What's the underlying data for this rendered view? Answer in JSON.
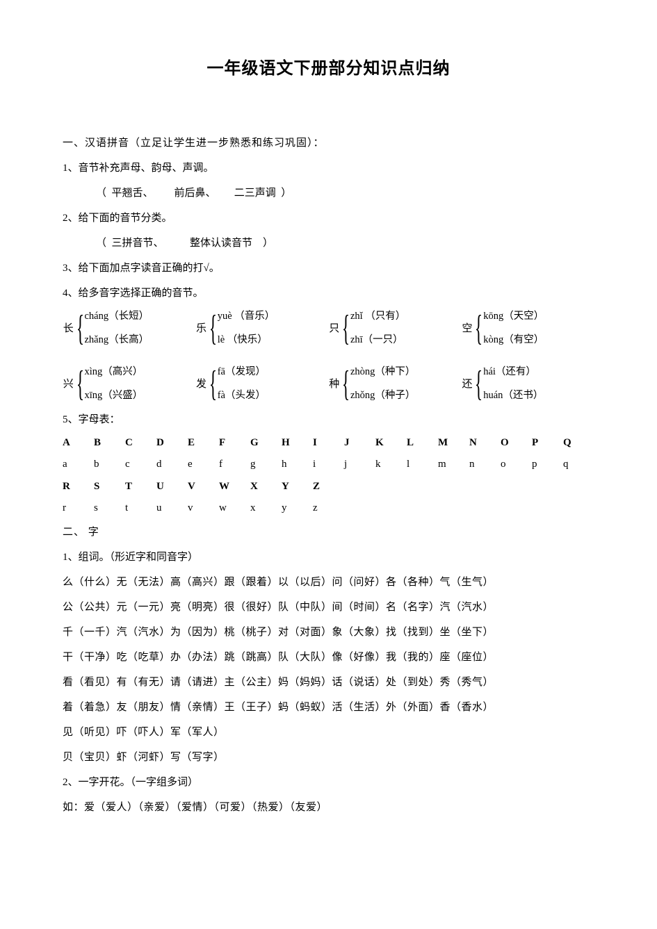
{
  "title": "一年级语文下册部分知识点归纳",
  "s1_head": "一、汉语拼音（立足让学生进一步熟悉和练习巩固）：",
  "s1_1": "1、音节补充声母、韵母、声调。",
  "s1_1a": "（  平翘舌、        前后鼻、       二三声调  ）",
  "s1_2": "2、给下面的音节分类。",
  "s1_2a": "（  三拼音节、          整体认读音节    ）",
  "s1_3": "3、给下面加点字读音正确的打√。",
  "s1_4": "4、给多音字选择正确的音节。",
  "poly1": [
    {
      "char": "长",
      "top": "cháng（长短）",
      "bot": "zhǎng（长高）"
    },
    {
      "char": "乐",
      "top": "yuè （音乐）",
      "bot": "lè （快乐）"
    },
    {
      "char": "只",
      "top": "zhǐ （只有）",
      "bot": "zhī（一只）"
    },
    {
      "char": "空",
      "top": "kōng（天空）",
      "bot": "kòng（有空）"
    }
  ],
  "poly2": [
    {
      "char": "兴",
      "top": "xìng（高兴）",
      "bot": "xīng（兴盛）"
    },
    {
      "char": "发",
      "top": "fā（发现）",
      "bot": "fà（头发）"
    },
    {
      "char": "种",
      "top": "zhòng（种下）",
      "bot": "zhǒng（种子）"
    },
    {
      "char": "还",
      "top": "hái（还有）",
      "bot": "huán（还书）"
    }
  ],
  "s1_5": "5、字母表：",
  "alpha_upper1": [
    "A",
    "B",
    "C",
    "D",
    "E",
    "F",
    "G",
    "H",
    "I",
    "J",
    "K",
    "L",
    "M",
    "N",
    "O",
    "P",
    "Q"
  ],
  "alpha_lower1": [
    "a",
    "b",
    "c",
    "d",
    "e",
    "f",
    "g",
    "h",
    "i",
    "j",
    "k",
    "l",
    "m",
    "n",
    "o",
    "p",
    "q"
  ],
  "alpha_upper2": [
    "R",
    "S",
    "T",
    "U",
    "V",
    "W",
    "X",
    "Y",
    "Z",
    "",
    "",
    "",
    "",
    "",
    "",
    "",
    ""
  ],
  "alpha_lower2": [
    "r",
    "s",
    "t",
    "u",
    "v",
    "w",
    "x",
    "y",
    "z",
    "",
    "",
    "",
    "",
    "",
    "",
    "",
    ""
  ],
  "s2_head": "二、 字",
  "s2_1": "1、组词。（形近字和同音字）",
  "w1": "么（什么）无（无法）高（高兴）跟（跟着）以（以后）问（问好）各（各种）气（生气）",
  "w2": "公（公共）元（一元）亮（明亮）很（很好）队（中队）间（时间）名（名字）汽（汽水）",
  "w3": "千（一千）汽（汽水）为（因为）桃（桃子）对（对面）象（大象）找（找到）坐（坐下）",
  "w4": "干（干净）吃（吃草）办（办法）跳（跳高）队（大队）像（好像）我（我的）座（座位）",
  "w5": "看（看见）有（有无）请（请进）主（公主）妈（妈妈）话（说话）处（到处）秀（秀气）",
  "w6": "着（着急）友（朋友）情（亲情）王（王子）蚂（蚂蚁）活（生活）外（外面）香（香水）",
  "w7": "见（听见）吓（吓人）军（军人）",
  "w8": "贝（宝贝）虾（河虾）写（写字）",
  "s2_2": "2、一字开花。（一字组多词）",
  "s2_2ex": "如：爱（爱人）（亲爱）（爱情）（可爱）（热爱）（友爱）",
  "colors": {
    "text": "#000000",
    "background": "#ffffff"
  },
  "fonts": {
    "title_family": "SimHei",
    "body_family": "SimSun",
    "title_size_pt": 18,
    "body_size_pt": 11
  }
}
